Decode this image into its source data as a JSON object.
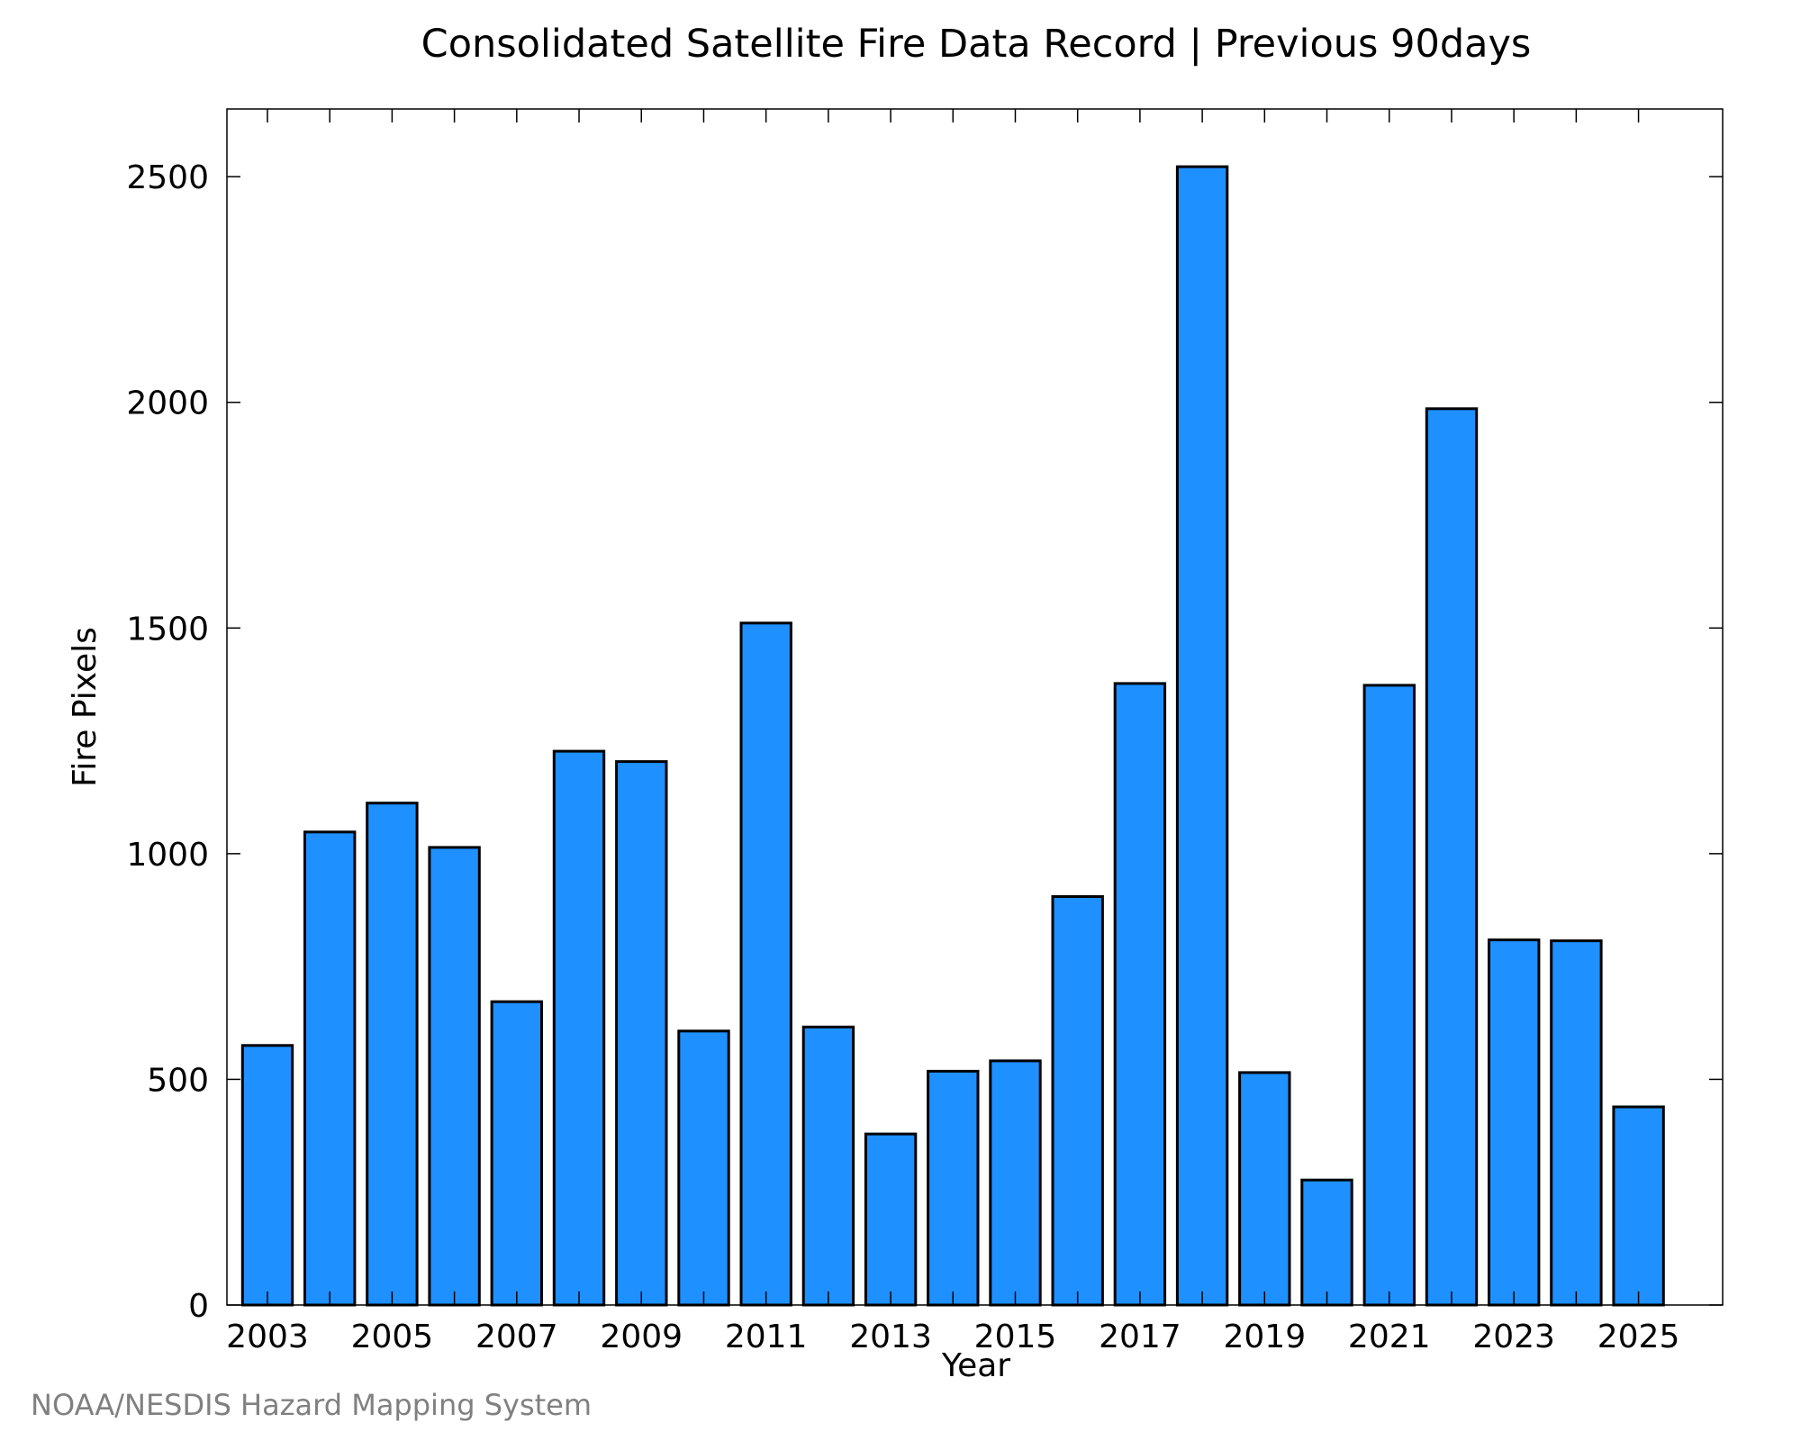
{
  "chart_data": {
    "type": "bar",
    "title": "Consolidated Satellite Fire Data Record | Previous 90days",
    "xlabel": "Year",
    "ylabel": "Fire Pixels",
    "categories": [
      "2003",
      "2004",
      "2005",
      "2006",
      "2007",
      "2008",
      "2009",
      "2010",
      "2011",
      "2012",
      "2013",
      "2014",
      "2015",
      "2016",
      "2017",
      "2018",
      "2019",
      "2020",
      "2021",
      "2022",
      "2023",
      "2024",
      "2025"
    ],
    "values": [
      575,
      1048,
      1112,
      1014,
      672,
      1227,
      1204,
      607,
      1511,
      616,
      379,
      518,
      541,
      905,
      1377,
      2522,
      515,
      277,
      1373,
      1986,
      809,
      807,
      439
    ],
    "ylim": [
      0,
      2650
    ],
    "yticks": [
      "0",
      "500",
      "1000",
      "1500",
      "2000",
      "2500"
    ],
    "xticks": [
      "2003",
      "2005",
      "2007",
      "2009",
      "2011",
      "2013",
      "2015",
      "2017",
      "2019",
      "2021",
      "2023",
      "2025"
    ],
    "grid": false,
    "bar_color": "#1e90ff",
    "legend": null
  },
  "credit": "NOAA/NESDIS Hazard Mapping System"
}
